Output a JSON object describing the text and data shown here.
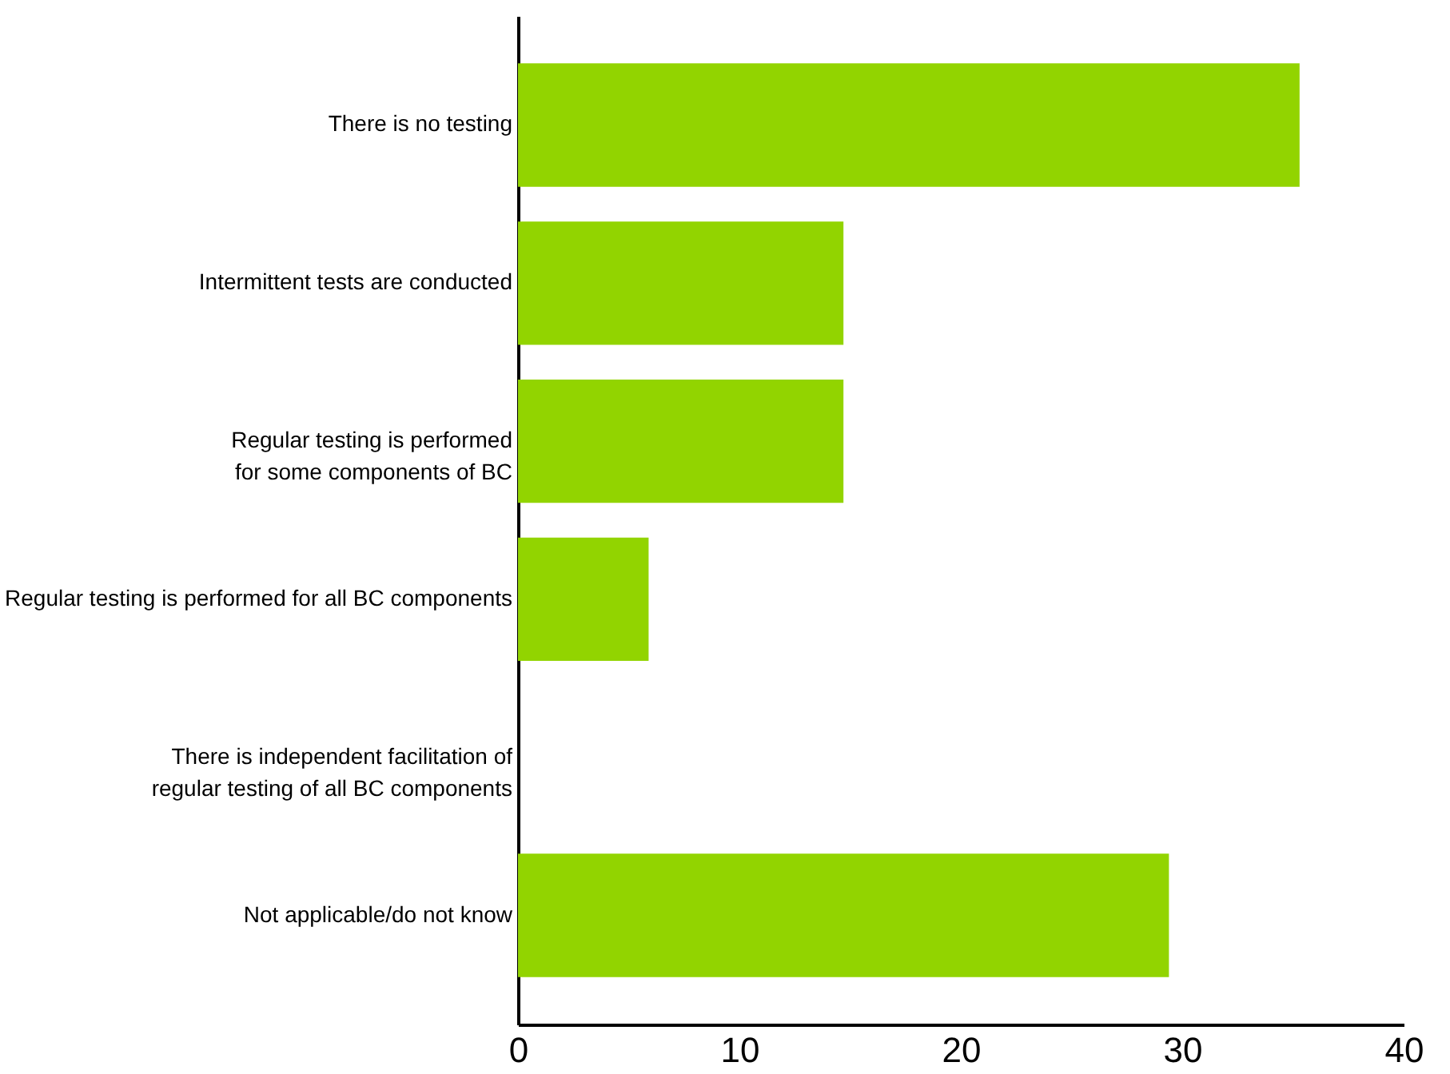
{
  "chart_data": {
    "type": "bar",
    "orientation": "horizontal",
    "categories": [
      "There is no testing",
      "Intermittent tests are conducted",
      "Regular testing is performed\nfor some components of BC",
      "Regular testing is performed for all BC components",
      "There is independent facilitation of\nregular testing of all BC components",
      "Not applicable/do not know"
    ],
    "values": [
      35.3,
      14.7,
      14.7,
      5.9,
      0,
      29.4
    ],
    "color": "#92d400",
    "xlim": [
      0,
      40
    ],
    "xticks": [
      0,
      10,
      20,
      30,
      40
    ],
    "grid": false
  }
}
